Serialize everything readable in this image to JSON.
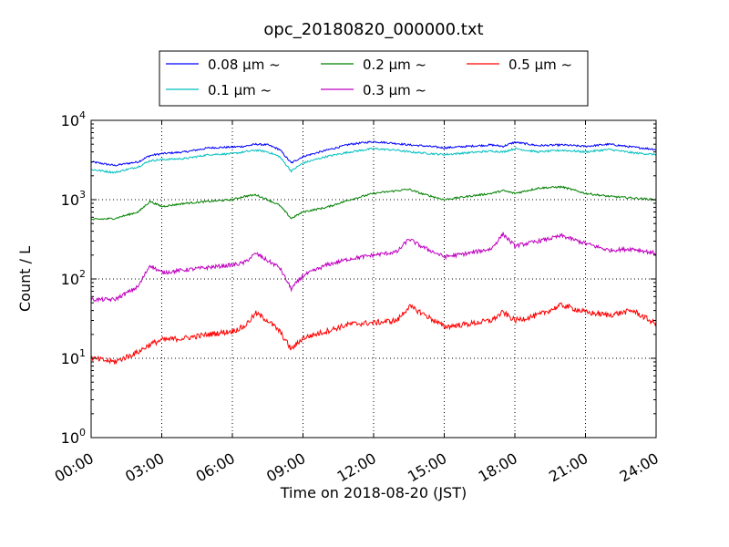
{
  "chart_data": {
    "type": "line",
    "title": "opc_20180820_000000.txt",
    "xlabel": "Time on 2018-08-20 (JST)",
    "ylabel": "Count / L",
    "yscale": "log",
    "ylim": [
      1,
      10000
    ],
    "xlim": [
      "00:00",
      "24:00"
    ],
    "grid": true,
    "legend_position": "top-center",
    "x_ticks": [
      "00:00",
      "03:00",
      "06:00",
      "09:00",
      "12:00",
      "15:00",
      "18:00",
      "21:00",
      "24:00"
    ],
    "y_ticks": [
      {
        "base": "10",
        "exp": "0"
      },
      {
        "base": "10",
        "exp": "1"
      },
      {
        "base": "10",
        "exp": "2"
      },
      {
        "base": "10",
        "exp": "3"
      },
      {
        "base": "10",
        "exp": "4"
      }
    ],
    "x": [
      "00:00",
      "01:00",
      "02:00",
      "02:30",
      "03:00",
      "04:00",
      "05:00",
      "06:00",
      "06:30",
      "07:00",
      "07:30",
      "08:00",
      "08:30",
      "09:00",
      "10:00",
      "11:00",
      "12:00",
      "13:00",
      "13:30",
      "14:00",
      "15:00",
      "16:00",
      "17:00",
      "17:30",
      "18:00",
      "19:00",
      "20:00",
      "21:00",
      "22:00",
      "23:00",
      "24:00"
    ],
    "series": [
      {
        "name": "0.08 μm ~",
        "color": "#0000ff",
        "values": [
          3000,
          2700,
          3000,
          3600,
          3800,
          4000,
          4500,
          4600,
          4700,
          5000,
          4900,
          4300,
          2900,
          3500,
          4200,
          5000,
          5400,
          5100,
          4900,
          4800,
          4500,
          4700,
          4900,
          4700,
          5300,
          4800,
          4900,
          4700,
          5000,
          4600,
          4300
        ]
      },
      {
        "name": "0.1 μm ~",
        "color": "#00bfbf",
        "values": [
          2400,
          2200,
          2600,
          3100,
          3200,
          3300,
          3700,
          3800,
          4000,
          4200,
          4000,
          3500,
          2300,
          2900,
          3500,
          4000,
          4400,
          4200,
          4000,
          3900,
          3700,
          3900,
          4100,
          4000,
          4400,
          4000,
          4200,
          4000,
          4300,
          3900,
          3700
        ]
      },
      {
        "name": "0.2 μm ~",
        "color": "#008000",
        "values": [
          560,
          580,
          700,
          950,
          820,
          900,
          950,
          1000,
          1100,
          1150,
          1000,
          850,
          580,
          700,
          800,
          1000,
          1200,
          1300,
          1350,
          1200,
          1000,
          1100,
          1200,
          1300,
          1200,
          1400,
          1450,
          1200,
          1100,
          1050,
          1000
        ]
      },
      {
        "name": "0.3 μm ~",
        "color": "#bf00bf",
        "values": [
          55,
          55,
          80,
          150,
          120,
          130,
          140,
          150,
          160,
          210,
          170,
          140,
          75,
          110,
          150,
          180,
          200,
          220,
          320,
          260,
          190,
          210,
          240,
          370,
          260,
          300,
          350,
          280,
          230,
          240,
          210
        ]
      },
      {
        "name": "0.5 μm ~",
        "color": "#ff0000",
        "values": [
          10,
          9,
          12,
          15,
          17,
          18,
          20,
          22,
          25,
          37,
          30,
          22,
          13,
          18,
          22,
          27,
          28,
          30,
          45,
          38,
          25,
          27,
          30,
          38,
          30,
          35,
          47,
          38,
          35,
          40,
          27
        ]
      }
    ]
  }
}
